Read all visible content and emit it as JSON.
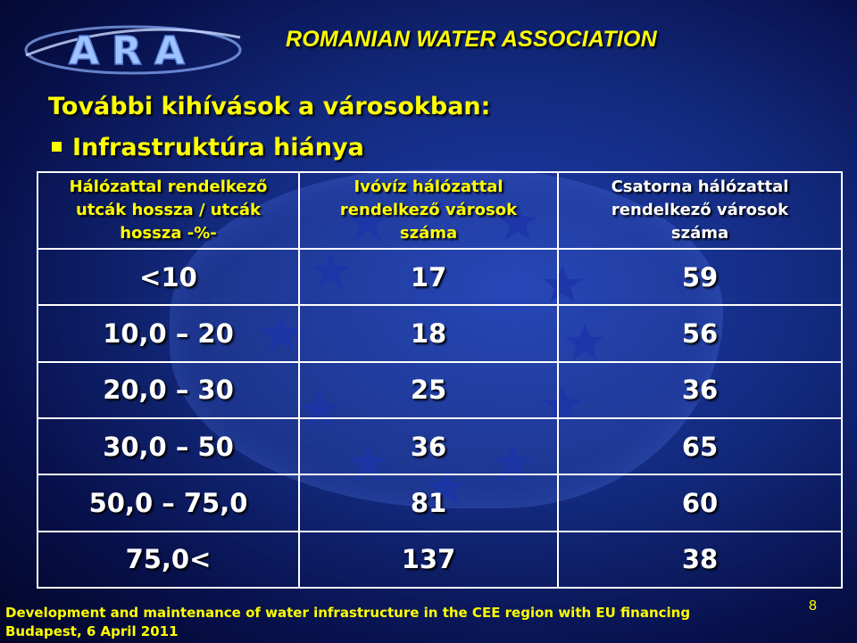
{
  "header": {
    "organization": "ROMANIAN WATER ASSOCIATION",
    "logo_text": "ARA"
  },
  "slide": {
    "title": "További kihívások a városokban:",
    "bullet": "Infrastruktúra hiánya"
  },
  "table": {
    "headers": [
      [
        "Hálózattal rendelkező",
        "utcák hossza / utcák",
        "hossza -%-"
      ],
      [
        "Ivóvíz hálózattal",
        "rendelkező városok",
        "száma"
      ],
      [
        "Csatorna hálózattal",
        "rendelkező városok",
        "száma"
      ]
    ],
    "rows": [
      [
        "<10",
        "17",
        "59"
      ],
      [
        "10,0 – 20",
        "18",
        "56"
      ],
      [
        "20,0 – 30",
        "25",
        "36"
      ],
      [
        "30,0 – 50",
        "36",
        "65"
      ],
      [
        "50,0 – 75,0",
        "81",
        "60"
      ],
      [
        "75,0<",
        "137",
        "38"
      ]
    ]
  },
  "footer": {
    "line1": "Development and maintenance of water infrastructure in the CEE region with EU financing",
    "line2": "Budapest, 6 April 2011",
    "page_number": "8"
  },
  "colors": {
    "accent": "#ffff00",
    "background": "#12287a",
    "text": "#ffffff"
  }
}
